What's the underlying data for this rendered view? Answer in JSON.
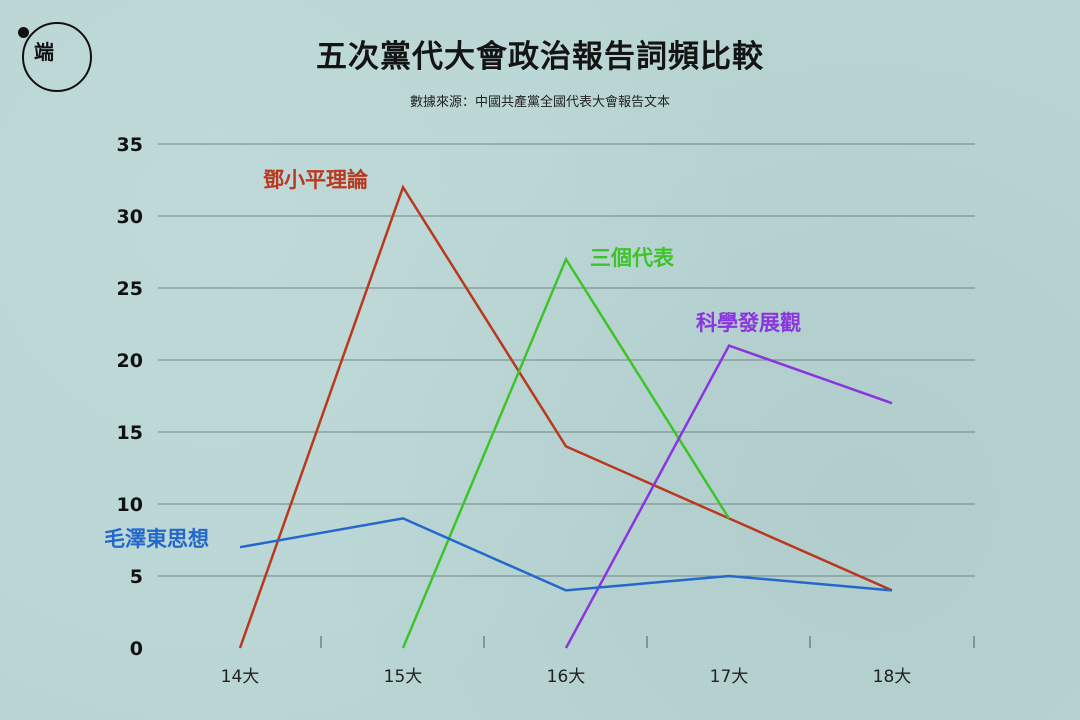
{
  "header": {
    "logo_text": "端",
    "title": "五次黨代大會政治報告詞頻比較",
    "subtitle": "數據來源：中國共產黨全國代表大會報告文本"
  },
  "chart_data": {
    "type": "line",
    "title": "五次黨代大會政治報告詞頻比較",
    "subtitle": "數據來源：中國共產黨全國代表大會報告文本",
    "xlabel": "",
    "ylabel": "",
    "categories": [
      "14大",
      "15大",
      "16大",
      "17大",
      "18大"
    ],
    "ylim": [
      0,
      35
    ],
    "yticks": [
      0,
      5,
      10,
      15,
      20,
      25,
      30,
      35
    ],
    "grid": true,
    "legend": "inline labels",
    "series": [
      {
        "name": "鄧小平理論",
        "color": "#b8391f",
        "values": [
          0,
          32,
          14,
          9,
          4
        ]
      },
      {
        "name": "三個代表",
        "color": "#3ec42a",
        "values": [
          null,
          0,
          27,
          9,
          null
        ]
      },
      {
        "name": "科學發展觀",
        "color": "#8a35e0",
        "values": [
          null,
          null,
          0,
          21,
          17
        ]
      },
      {
        "name": "毛澤東思想",
        "color": "#2468cc",
        "values": [
          7,
          9,
          4,
          5,
          4
        ]
      }
    ]
  }
}
